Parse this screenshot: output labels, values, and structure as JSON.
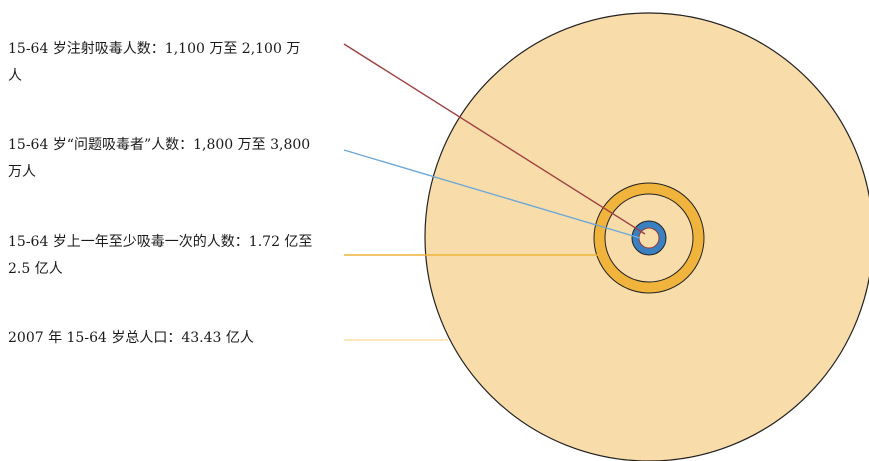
{
  "diagram": {
    "labels": [
      {
        "text": "15-64 岁注射吸毒人数：1,100 万至 2,100 万人"
      },
      {
        "text": "15-64 岁“问题吸毒者”人数：1,800 万至 3,800 万人"
      },
      {
        "text": "15-64 岁上一年至少吸毒一次的人数：1.72 亿至 2.5 亿人"
      },
      {
        "text": "2007 年 15-64 岁总人口：43.43 亿人"
      }
    ],
    "colors": {
      "total_population": "#f8ddaa",
      "past_year_users": "#f0b43c",
      "problem_users": "#3a7fc0",
      "injecting_users": "#9a3a34",
      "outline": "#222222",
      "leader_total": "#f8ddaa",
      "leader_past_year": "#f0b43c",
      "leader_problem": "#6ea8d8",
      "leader_injecting": "#a04040"
    }
  }
}
